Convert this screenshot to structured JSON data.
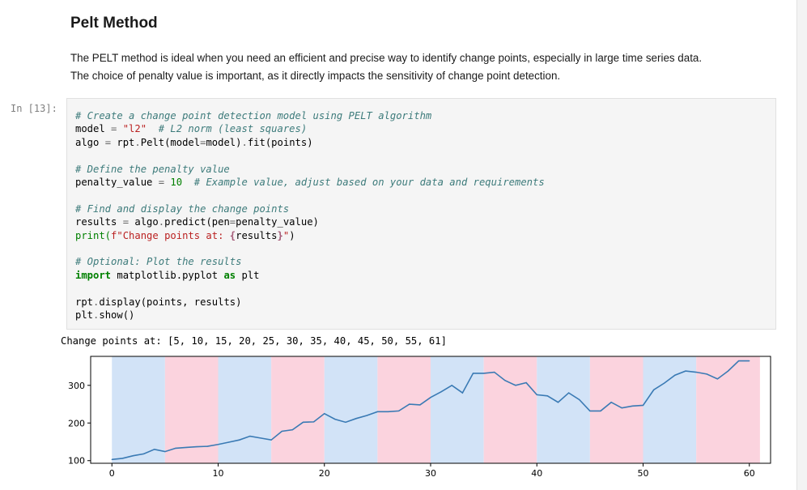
{
  "markdown": {
    "title": "Pelt Method",
    "para_line1": "The PELT method is ideal when you need an efficient and precise way to identify change points, especially in large time series data.",
    "para_line2": "The choice of penalty value is important, as it directly impacts the sensitivity of change point detection."
  },
  "cell": {
    "prompt": "In [13]:",
    "code": {
      "l1_comment": "# Create a change point detection model using PELT algorithm",
      "l2_a": "model ",
      "l2_op": "=",
      "l2_str": " \"l2\"",
      "l2_comment": "  # L2 norm (least squares)",
      "l3_a": "algo ",
      "l3_op": "=",
      "l3_b": " rpt",
      "l3_dot1": ".",
      "l3_c": "Pelt(model",
      "l3_eq": "=",
      "l3_d": "model)",
      "l3_dot2": ".",
      "l3_e": "fit(points)",
      "l5_comment": "# Define the penalty value",
      "l6_a": "penalty_value ",
      "l6_op": "=",
      "l6_num": " 10",
      "l6_comment": "  # Example value, adjust based on your data and requirements",
      "l8_comment": "# Find and display the change points",
      "l9_a": "results ",
      "l9_op": "=",
      "l9_b": " algo",
      "l9_dot": ".",
      "l9_c": "predict(pen",
      "l9_eq": "=",
      "l9_d": "penalty_value)",
      "l10_a": "print(",
      "l10_s1": "f\"Change points at: ",
      "l10_i1": "{",
      "l10_mid": "results",
      "l10_i2": "}",
      "l10_s2": "\"",
      "l10_b": ")",
      "l12_comment": "# Optional: Plot the results",
      "l13_kw1": "import",
      "l13_mod": " matplotlib.pyplot ",
      "l13_kw2": "as",
      "l13_b": " plt",
      "l15_a": "rpt",
      "l15_dot": ".",
      "l15_b": "display(points, results)",
      "l16_a": "plt",
      "l16_dot": ".",
      "l16_b": "show()"
    }
  },
  "output_text": "Change points at: [5, 10, 15, 20, 25, 30, 35, 40, 45, 50, 55, 61]",
  "chart_data": {
    "type": "line",
    "x": [
      0,
      1,
      2,
      3,
      4,
      5,
      6,
      7,
      8,
      9,
      10,
      11,
      12,
      13,
      14,
      15,
      16,
      17,
      18,
      19,
      20,
      21,
      22,
      23,
      24,
      25,
      26,
      27,
      28,
      29,
      30,
      31,
      32,
      33,
      34,
      35,
      36,
      37,
      38,
      39,
      40,
      41,
      42,
      43,
      44,
      45,
      46,
      47,
      48,
      49,
      50,
      51,
      52,
      53,
      54,
      55,
      56,
      57,
      58,
      59,
      60
    ],
    "values": [
      103,
      106,
      113,
      118,
      130,
      124,
      133,
      135,
      137,
      138,
      143,
      149,
      155,
      165,
      160,
      155,
      178,
      182,
      202,
      203,
      225,
      210,
      202,
      212,
      220,
      230,
      230,
      232,
      250,
      248,
      268,
      283,
      300,
      280,
      332,
      332,
      335,
      313,
      300,
      307,
      275,
      272,
      255,
      280,
      262,
      232,
      232,
      255,
      240,
      245,
      247,
      288,
      306,
      327,
      338,
      335,
      330,
      317,
      338,
      365,
      365
    ],
    "breakpoints": [
      5,
      10,
      15,
      20,
      25,
      30,
      35,
      40,
      45,
      50,
      55,
      61
    ],
    "shade_colors": [
      "#d2e3f7",
      "#fbd3de"
    ],
    "line_color": "#3a7ab4",
    "xlim": [
      -2,
      62
    ],
    "ylim": [
      93,
      377
    ],
    "xticks": [
      0,
      10,
      20,
      30,
      40,
      50,
      60
    ],
    "yticks": [
      100,
      200,
      300
    ],
    "title": "",
    "xlabel": "",
    "ylabel": ""
  }
}
